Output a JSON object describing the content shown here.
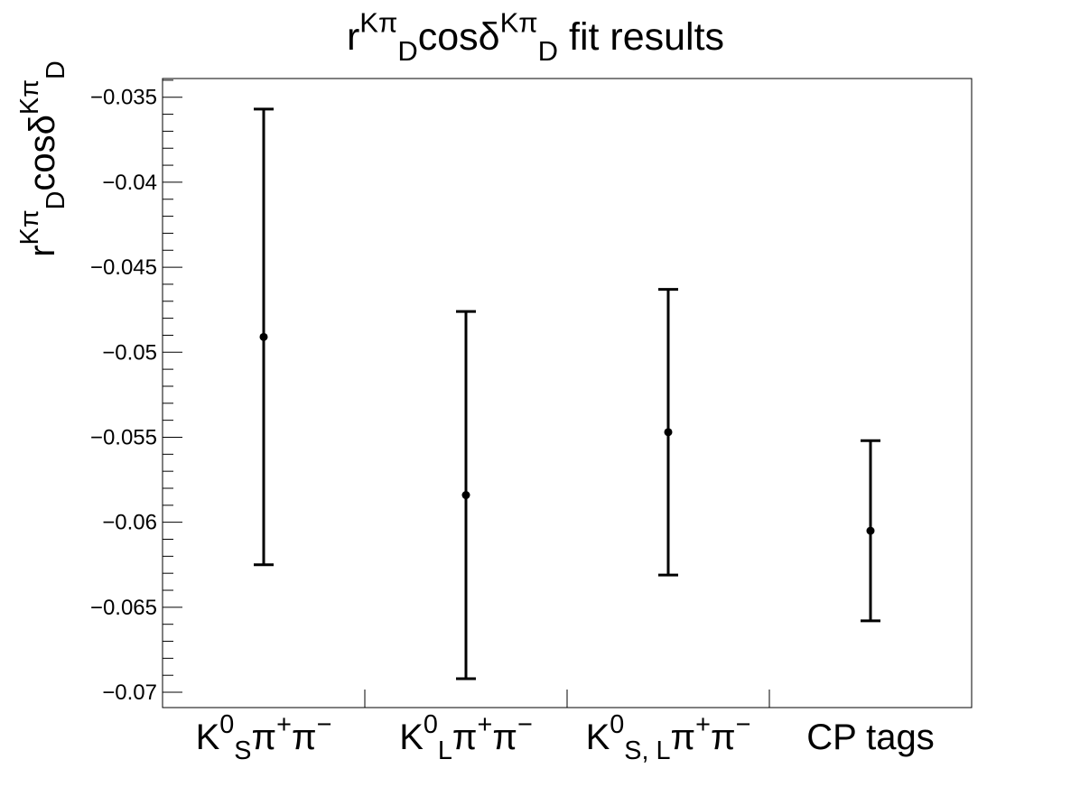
{
  "chart_data": {
    "type": "scatter",
    "title": {
      "parts": [
        {
          "t": "r"
        },
        {
          "t": "Kπ",
          "sup": true
        },
        {
          "t": "D",
          "sub": true
        },
        {
          "t": "cosδ"
        },
        {
          "t": "Kπ",
          "sup": true
        },
        {
          "t": "D",
          "sub": true
        },
        {
          "t": " fit results"
        }
      ]
    },
    "ylabel": {
      "parts": [
        {
          "t": "r"
        },
        {
          "t": "Kπ",
          "sup": true
        },
        {
          "t": "D",
          "sub": true
        },
        {
          "t": "cosδ"
        },
        {
          "t": "Kπ",
          "sup": true
        },
        {
          "t": "D",
          "sub": true
        }
      ]
    },
    "xlabel": "",
    "ylim": [
      -0.0709,
      -0.0339
    ],
    "yticks": [
      -0.035,
      -0.04,
      -0.045,
      -0.05,
      -0.055,
      -0.06,
      -0.065,
      -0.07
    ],
    "ytick_labels": [
      "−0.035",
      "−0.04",
      "−0.045",
      "−0.05",
      "−0.055",
      "−0.06",
      "−0.065",
      "−0.07"
    ],
    "grid": false,
    "legend": "none",
    "color": "#000000",
    "categories": [
      {
        "parts": [
          {
            "t": "K"
          },
          {
            "t": "0",
            "sup": true
          },
          {
            "t": "S",
            "sub": true
          },
          {
            "t": "π"
          },
          {
            "t": "+",
            "sup": true
          },
          {
            "t": "π"
          },
          {
            "t": "−",
            "sup": true
          }
        ]
      },
      {
        "parts": [
          {
            "t": "K"
          },
          {
            "t": "0",
            "sup": true
          },
          {
            "t": "L",
            "sub": true
          },
          {
            "t": "π"
          },
          {
            "t": "+",
            "sup": true
          },
          {
            "t": "π"
          },
          {
            "t": "−",
            "sup": true
          }
        ]
      },
      {
        "parts": [
          {
            "t": "K"
          },
          {
            "t": "0",
            "sup": true
          },
          {
            "t": "S, L",
            "sub": true
          },
          {
            "t": "π"
          },
          {
            "t": "+",
            "sup": true
          },
          {
            "t": "π"
          },
          {
            "t": "−",
            "sup": true
          }
        ]
      },
      {
        "parts": [
          {
            "t": "CP tags"
          }
        ]
      }
    ],
    "points": [
      {
        "y": -0.0491,
        "err_low": 0.0134,
        "err_high": 0.0134
      },
      {
        "y": -0.0584,
        "err_low": 0.0108,
        "err_high": 0.0108
      },
      {
        "y": -0.0547,
        "err_low": 0.0084,
        "err_high": 0.0084
      },
      {
        "y": -0.0605,
        "err_low": 0.0053,
        "err_high": 0.0053
      }
    ]
  }
}
